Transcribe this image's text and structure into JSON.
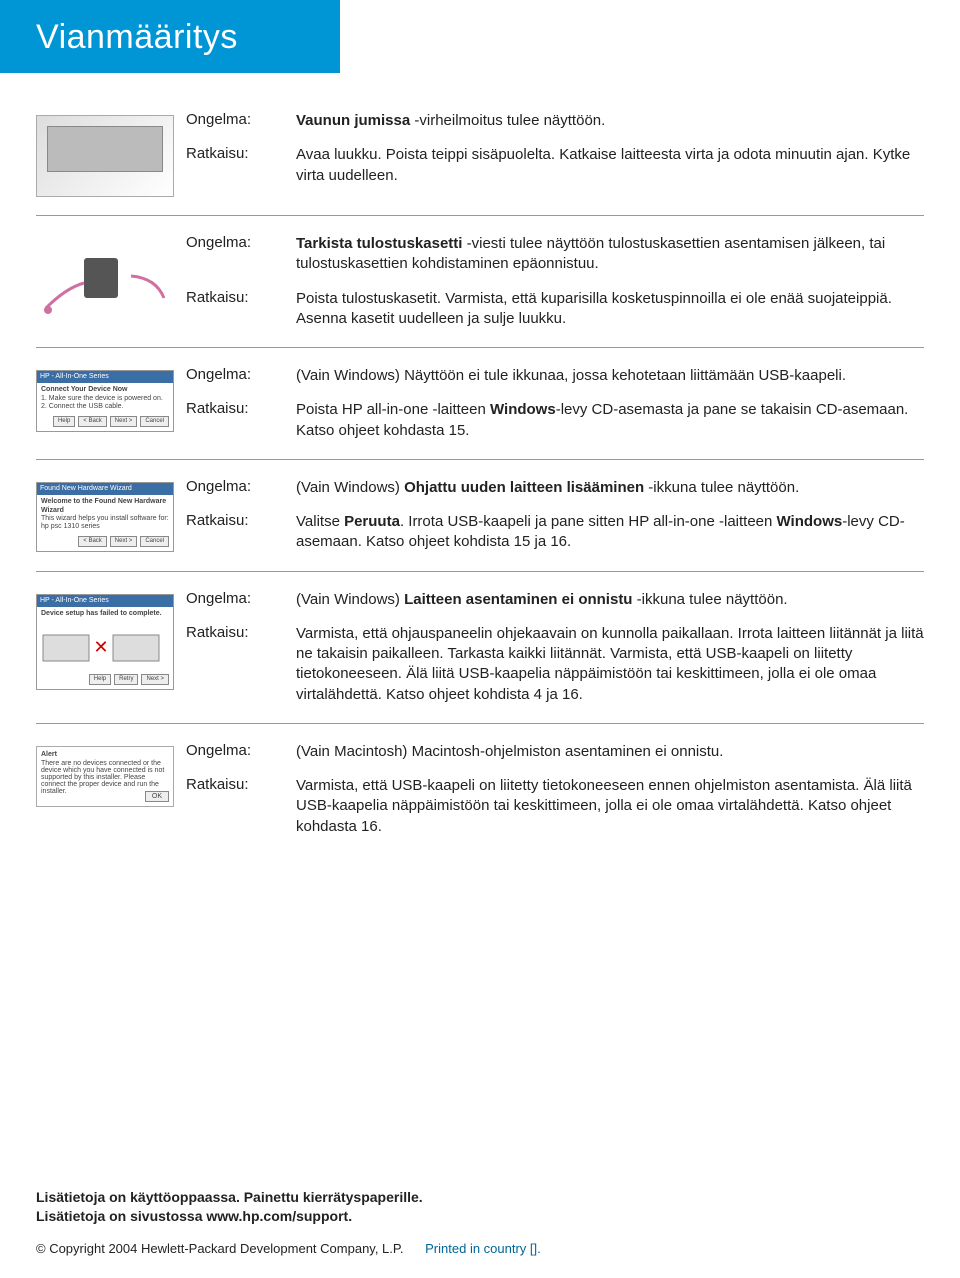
{
  "colors": {
    "header_bg": "#0096d6",
    "header_text": "#ffffff",
    "body_text": "#222222",
    "divider": "#999999",
    "footer_accent": "#006699",
    "background": "#ffffff"
  },
  "typography": {
    "title_fontsize": 34,
    "label_fontsize": 15,
    "body_fontsize": 15,
    "footer_fontsize": 14
  },
  "title": "Vianmääritys",
  "labels": {
    "problem": "Ongelma:",
    "solution": "Ratkaisu:"
  },
  "sections": [
    {
      "thumb": "printer-open",
      "rows": [
        {
          "label": "problem",
          "html": "<b>Vaunun jumissa</b> -virheilmoitus tulee näyttöön."
        },
        {
          "label": "solution",
          "html": "Avaa luukku. Poista teippi sisäpuolelta. Katkaise laitteesta virta ja odota minuutin ajan. Kytke virta uudelleen."
        }
      ]
    },
    {
      "thumb": "cartridge-hands",
      "rows": [
        {
          "label": "problem",
          "html": "<b>Tarkista tulostuskasetti</b> -viesti tulee näyttöön tulostuskasettien asentamisen jälkeen, tai tulostuskasettien kohdistaminen epäonnistuu."
        },
        {
          "label": "solution",
          "html": "Poista tulostuskasetit. Varmista, että kuparisilla kosketuspinnoilla ei ole enää suojateippiä. Asenna kasetit uudelleen ja sulje luukku."
        }
      ]
    },
    {
      "thumb": "connect-wizard",
      "rows": [
        {
          "label": "problem",
          "html": "(Vain Windows) Näyttöön ei tule ikkunaa, jossa kehotetaan liittämään USB-kaapeli."
        },
        {
          "label": "solution",
          "html": "Poista HP all-in-one -laitteen <b>Windows</b>-levy CD-asemasta ja pane se takaisin CD-asemaan. Katso ohjeet kohdasta 15."
        }
      ]
    },
    {
      "thumb": "found-hw-wizard",
      "rows": [
        {
          "label": "problem",
          "html": "(Vain Windows) <b>Ohjattu uuden laitteen lisääminen</b> -ikkuna tulee näyttöön."
        },
        {
          "label": "solution",
          "html": "Valitse <b>Peruuta</b>. Irrota USB-kaapeli ja pane sitten HP all-in-one -laitteen <b>Windows</b>-levy CD-asemaan. Katso ohjeet kohdista 15 ja 16."
        }
      ]
    },
    {
      "thumb": "setup-failed",
      "rows": [
        {
          "label": "problem",
          "html": "(Vain Windows) <b>Laitteen asentaminen ei onnistu</b> -ikkuna tulee näyttöön."
        },
        {
          "label": "solution",
          "html": "Varmista, että ohjauspaneelin ohjekaavain on kunnolla paikallaan. Irrota laitteen liitännät ja liitä ne takaisin paikalleen. Tarkasta kaikki liitännät. Varmista, että USB-kaapeli on liitetty tietokoneeseen. Älä liitä USB-kaapelia näppäimistöön tai keskittimeen, jolla ei ole omaa virtalähdettä. Katso ohjeet kohdista 4 ja 16."
        }
      ]
    },
    {
      "thumb": "mac-alert",
      "rows": [
        {
          "label": "problem",
          "html": "(Vain Macintosh) Macintosh-ohjelmiston asentaminen ei onnistu."
        },
        {
          "label": "solution",
          "html": "Varmista, että USB-kaapeli on liitetty tietokoneeseen ennen ohjelmiston asentamista. Älä liitä USB-kaapelia näppäimistöön tai keskittimeen, jolla ei ole omaa virtalähdettä. Katso ohjeet kohdasta 16."
        }
      ]
    }
  ],
  "footer": {
    "line1": "Lisätietoja on käyttöoppaassa.   Painettu kierrätyspaperille.",
    "line2": "Lisätietoja on sivustossa www.hp.com/support.",
    "copyright": "© Copyright 2004 Hewlett-Packard Development Company, L.P.",
    "printed": "Printed in country []."
  }
}
